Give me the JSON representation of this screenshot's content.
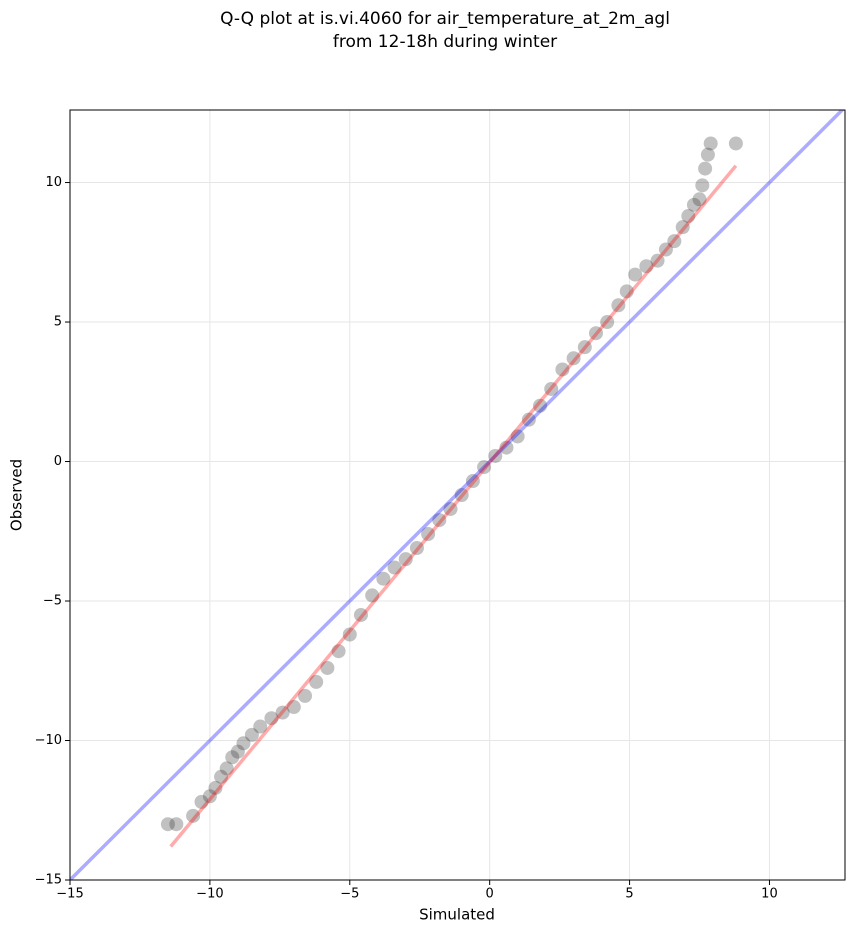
{
  "chart_data": {
    "type": "scatter",
    "title": [
      "Q-Q plot at is.vi.4060 for air_temperature_at_2m_agl",
      "from 12-18h during winter"
    ],
    "xlabel": "Simulated",
    "ylabel": "Observed",
    "xlim": [
      -15,
      12.7
    ],
    "ylim": [
      -15,
      12.6
    ],
    "xticks": [
      {
        "value": -15,
        "label": "−15"
      },
      {
        "value": -10,
        "label": "−10"
      },
      {
        "value": -5,
        "label": "−5"
      },
      0,
      5,
      10
    ],
    "yticks": [
      {
        "value": -15,
        "label": "−15"
      },
      {
        "value": -10,
        "label": "−10"
      },
      {
        "value": -5,
        "label": "−5"
      },
      0,
      5,
      10
    ],
    "grid": true,
    "series": [
      {
        "color": "#333333",
        "x": [
          -11.5,
          -11.2,
          -10.6,
          -10.3,
          -10.0,
          -9.8,
          -9.6,
          -9.4,
          -9.2,
          -9.0,
          -8.8,
          -8.5,
          -8.2,
          -7.8,
          -7.4,
          -7.0,
          -6.6,
          -6.2,
          -5.8,
          -5.4,
          -5.0,
          -4.6,
          -4.2,
          -3.8,
          -3.4,
          -3.0,
          -2.6,
          -2.2,
          -1.8,
          -1.4,
          -1.0,
          -0.6,
          -0.2,
          0.2,
          0.6,
          1.0,
          1.4,
          1.8,
          2.2,
          2.6,
          3.0,
          3.4,
          3.8,
          4.2,
          4.6,
          4.9,
          5.2,
          5.6,
          6.0,
          6.3,
          6.6,
          6.9,
          7.1,
          7.3,
          7.5,
          7.6,
          7.7,
          7.8,
          7.9,
          8.8
        ],
        "y": [
          -13.0,
          -13.0,
          -12.7,
          -12.2,
          -12.0,
          -11.7,
          -11.3,
          -11.0,
          -10.6,
          -10.4,
          -10.1,
          -9.8,
          -9.5,
          -9.2,
          -9.0,
          -8.8,
          -8.4,
          -7.9,
          -7.4,
          -6.8,
          -6.2,
          -5.5,
          -4.8,
          -4.2,
          -3.8,
          -3.5,
          -3.1,
          -2.6,
          -2.1,
          -1.7,
          -1.2,
          -0.7,
          -0.2,
          0.2,
          0.5,
          0.9,
          1.5,
          2.0,
          2.6,
          3.3,
          3.7,
          4.1,
          4.6,
          5.0,
          5.6,
          6.1,
          6.7,
          7.0,
          7.2,
          7.6,
          7.9,
          8.4,
          8.8,
          9.2,
          9.4,
          9.9,
          10.5,
          11.0,
          11.4,
          11.4
        ]
      }
    ],
    "lines": [
      {
        "color": "#0000ff",
        "x": [
          -15,
          12.7
        ],
        "y": [
          -15,
          12.7
        ]
      },
      {
        "color": "#ff0000",
        "x": [
          -11.4,
          8.8
        ],
        "y": [
          -13.8,
          10.6
        ]
      }
    ]
  }
}
